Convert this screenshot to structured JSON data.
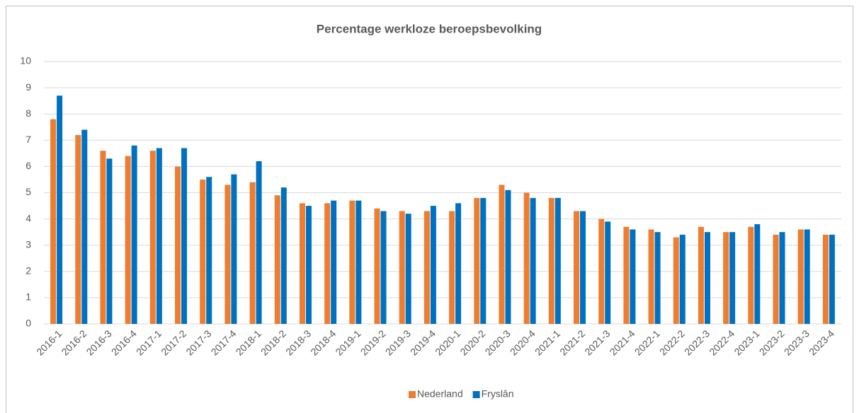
{
  "chart_data": {
    "type": "bar",
    "title": "Percentage werkloze beroepsbevolking",
    "categories": [
      "2016-1",
      "2016-2",
      "2016-3",
      "2016-4",
      "2017-1",
      "2017-2",
      "2017-3",
      "2017-4",
      "2018-1",
      "2018-2",
      "2018-3",
      "2018-4",
      "2019-1",
      "2019-2",
      "2019-3",
      "2019-4",
      "2020-1",
      "2020-2",
      "2020-3",
      "2020-4",
      "2021-1",
      "2021-2",
      "2021-3",
      "2021-4",
      "2022-1",
      "2022-2",
      "2022-3",
      "2022-4",
      "2023-1",
      "2023-2",
      "2023-3",
      "2023-4"
    ],
    "series": [
      {
        "name": "Nederland",
        "color": "#ed7d31",
        "values": [
          7.8,
          7.2,
          6.6,
          6.4,
          6.6,
          6.0,
          5.5,
          5.3,
          5.4,
          4.9,
          4.6,
          4.6,
          4.7,
          4.4,
          4.3,
          4.3,
          4.3,
          4.8,
          5.3,
          5.0,
          4.8,
          4.3,
          4.0,
          3.7,
          3.6,
          3.3,
          3.7,
          3.5,
          3.7,
          3.4,
          3.6,
          3.4
        ]
      },
      {
        "name": "Fryslân",
        "color": "#0070c0",
        "values": [
          8.7,
          7.4,
          6.3,
          6.8,
          6.7,
          6.7,
          5.6,
          5.7,
          6.2,
          5.2,
          4.5,
          4.7,
          4.7,
          4.3,
          4.2,
          4.5,
          4.6,
          4.8,
          5.1,
          4.8,
          4.8,
          4.3,
          3.9,
          3.6,
          3.5,
          3.4,
          3.5,
          3.5,
          3.8,
          3.5,
          3.6,
          3.4
        ]
      }
    ],
    "ylim": [
      0,
      10
    ],
    "yticks": [
      0,
      1,
      2,
      3,
      4,
      5,
      6,
      7,
      8,
      9,
      10
    ],
    "grid": true,
    "legend": "bottom"
  }
}
